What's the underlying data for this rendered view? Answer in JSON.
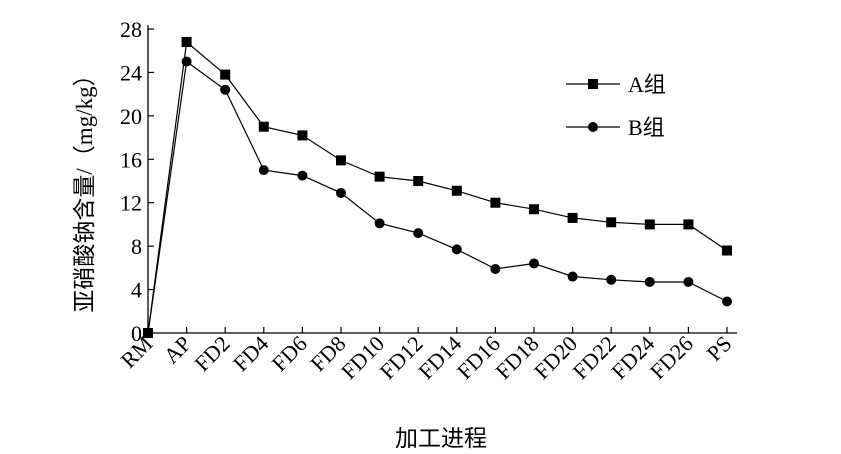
{
  "chart_data": {
    "type": "line",
    "title": "",
    "xlabel": "加工进程",
    "ylabel": "亚硝酸钠含量/（mg/kg）",
    "categories": [
      "RM",
      "AP",
      "FD2",
      "FD4",
      "FD6",
      "FD8",
      "FD10",
      "FD12",
      "FD14",
      "FD16",
      "FD18",
      "FD20",
      "FD22",
      "FD24",
      "FD26",
      "PS"
    ],
    "ylim": [
      0,
      28
    ],
    "yticks": [
      0,
      4,
      8,
      12,
      16,
      20,
      24,
      28
    ],
    "legend_position": "top-right",
    "grid": false,
    "series": [
      {
        "name": "A组",
        "marker": "square",
        "values": [
          0,
          26.8,
          23.8,
          19.0,
          18.2,
          15.9,
          14.4,
          14.0,
          13.1,
          12.0,
          11.4,
          10.6,
          10.2,
          10.0,
          10.0,
          7.6
        ]
      },
      {
        "name": "B组",
        "marker": "circle",
        "values": [
          0,
          25.0,
          22.4,
          15.0,
          14.5,
          12.9,
          10.1,
          9.2,
          7.7,
          5.9,
          6.4,
          5.2,
          4.9,
          4.7,
          4.7,
          2.9
        ]
      }
    ]
  }
}
